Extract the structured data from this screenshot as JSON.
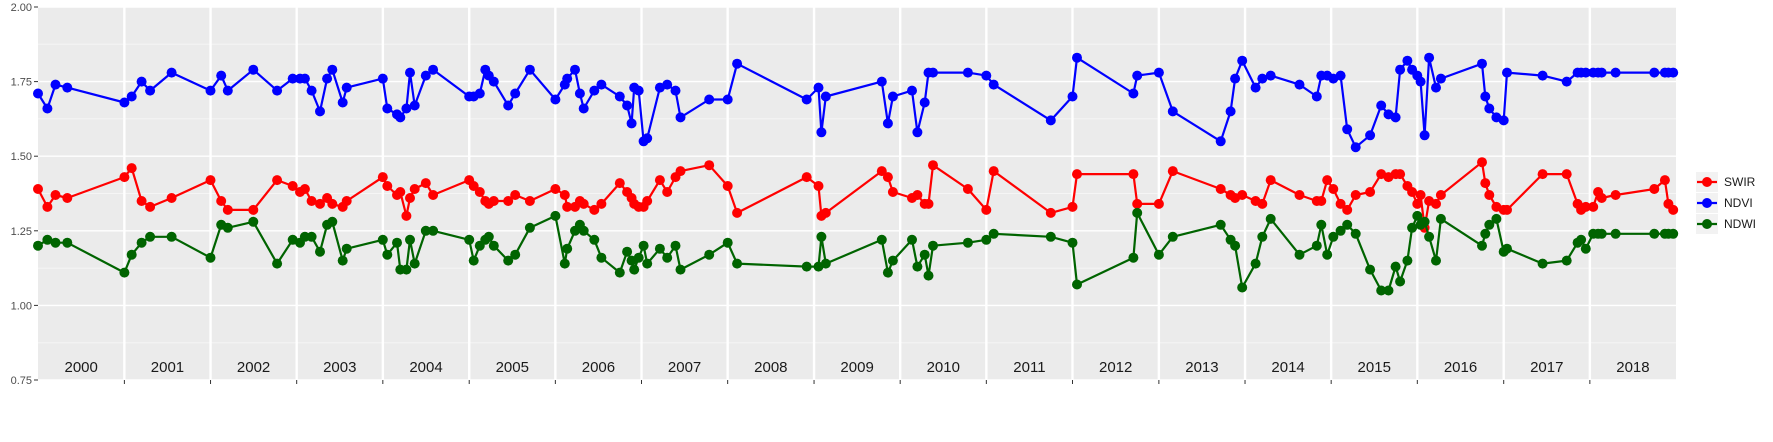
{
  "chart_data": {
    "type": "line",
    "title": "",
    "xlabel": "",
    "ylabel": "",
    "ylim": [
      0.75,
      2.0
    ],
    "xlim": [
      "2000-01-01",
      "2019-01-01"
    ],
    "y_ticks": [
      "0.75",
      "1.00",
      "1.25",
      "1.50",
      "1.75",
      "2.00"
    ],
    "y_tick_values": [
      0.75,
      1.0,
      1.25,
      1.5,
      1.75,
      2.0
    ],
    "year_labels": [
      "2000",
      "2001",
      "2002",
      "2003",
      "2004",
      "2005",
      "2006",
      "2007",
      "2008",
      "2009",
      "2010",
      "2011",
      "2012",
      "2013",
      "2014",
      "2015",
      "2016",
      "2017",
      "2018"
    ],
    "grid": true,
    "legend_position": "right",
    "dates": [
      "2000-01-01",
      "2000-02-10",
      "2000-03-15",
      "2000-05-04",
      "2001-01-01",
      "2001-02-01",
      "2001-03-15",
      "2001-04-20",
      "2001-07-20",
      "2002-01-01",
      "2002-02-15",
      "2002-03-15",
      "2002-07-01",
      "2002-10-10",
      "2002-12-15",
      "2003-01-15",
      "2003-02-05",
      "2003-03-05",
      "2003-04-10",
      "2003-05-10",
      "2003-06-01",
      "2003-07-15",
      "2003-08-01",
      "2004-01-01",
      "2004-01-20",
      "2004-03-01",
      "2004-03-15",
      "2004-04-10",
      "2004-04-25",
      "2004-05-15",
      "2004-07-01",
      "2004-08-01",
      "2005-01-01",
      "2005-01-20",
      "2005-02-15",
      "2005-03-10",
      "2005-03-25",
      "2005-04-15",
      "2005-06-15",
      "2005-07-15",
      "2005-09-15",
      "2006-01-01",
      "2006-02-10",
      "2006-02-20",
      "2006-03-25",
      "2006-04-15",
      "2006-05-01",
      "2006-06-15",
      "2006-07-15",
      "2006-10-01",
      "2006-11-01",
      "2006-11-20",
      "2006-12-01",
      "2006-12-20",
      "2007-01-10",
      "2007-01-25",
      "2007-03-20",
      "2007-04-20",
      "2007-05-25",
      "2007-06-15",
      "2007-10-15",
      "2008-01-01",
      "2008-02-10",
      "2008-12-01",
      "2009-01-20",
      "2009-02-01",
      "2009-02-20",
      "2009-10-15",
      "2009-11-10",
      "2009-12-01",
      "2010-02-20",
      "2010-03-15",
      "2010-04-15",
      "2010-05-01",
      "2010-05-20",
      "2010-10-15",
      "2011-01-01",
      "2011-02-01",
      "2011-10-01",
      "2012-01-01",
      "2012-01-20",
      "2012-09-15",
      "2012-10-01",
      "2013-01-01",
      "2013-03-01",
      "2013-09-20",
      "2013-11-01",
      "2013-11-20",
      "2013-12-20",
      "2014-02-15",
      "2014-03-15",
      "2014-04-20",
      "2014-08-20",
      "2014-11-01",
      "2014-11-20",
      "2014-12-15",
      "2015-01-10",
      "2015-02-10",
      "2015-03-10",
      "2015-04-15",
      "2015-06-15",
      "2015-08-01",
      "2015-09-01",
      "2015-10-01",
      "2015-10-20",
      "2015-11-20",
      "2015-12-10",
      "2016-01-01",
      "2016-01-15",
      "2016-02-01",
      "2016-02-20",
      "2016-03-20",
      "2016-04-10",
      "2016-10-01",
      "2016-10-15",
      "2016-11-01",
      "2016-12-01",
      "2017-01-01",
      "2017-01-15",
      "2017-06-15",
      "2017-09-25",
      "2017-11-10",
      "2017-11-25",
      "2017-12-15",
      "2018-01-15",
      "2018-02-05",
      "2018-02-20",
      "2018-04-20",
      "2018-10-01",
      "2018-11-15",
      "2018-11-30",
      "2018-12-20"
    ],
    "series": [
      {
        "name": "SWIR",
        "color": "#ff0000",
        "values": [
          1.39,
          1.33,
          1.37,
          1.36,
          1.43,
          1.46,
          1.35,
          1.33,
          1.36,
          1.42,
          1.35,
          1.32,
          1.32,
          1.42,
          1.4,
          1.38,
          1.39,
          1.35,
          1.34,
          1.36,
          1.34,
          1.33,
          1.35,
          1.43,
          1.4,
          1.37,
          1.38,
          1.3,
          1.36,
          1.39,
          1.41,
          1.37,
          1.42,
          1.4,
          1.38,
          1.35,
          1.34,
          1.35,
          1.35,
          1.37,
          1.35,
          1.39,
          1.37,
          1.33,
          1.33,
          1.35,
          1.34,
          1.32,
          1.34,
          1.41,
          1.38,
          1.36,
          1.34,
          1.33,
          1.33,
          1.35,
          1.42,
          1.38,
          1.43,
          1.45,
          1.47,
          1.4,
          1.31,
          1.43,
          1.4,
          1.3,
          1.31,
          1.45,
          1.43,
          1.38,
          1.36,
          1.37,
          1.34,
          1.34,
          1.47,
          1.39,
          1.32,
          1.45,
          1.31,
          1.33,
          1.44,
          1.44,
          1.34,
          1.34,
          1.45,
          1.39,
          1.37,
          1.36,
          1.37,
          1.35,
          1.34,
          1.42,
          1.37,
          1.35,
          1.35,
          1.42,
          1.39,
          1.34,
          1.32,
          1.37,
          1.38,
          1.44,
          1.43,
          1.44,
          1.44,
          1.4,
          1.38,
          1.34,
          1.37,
          1.26,
          1.35,
          1.34,
          1.37,
          1.48,
          1.41,
          1.37,
          1.33,
          1.32,
          1.32,
          1.44,
          1.44,
          1.34,
          1.32,
          1.33,
          1.33,
          1.38,
          1.36,
          1.37,
          1.39,
          1.42,
          1.34,
          1.32
        ]
      },
      {
        "name": "NDVI",
        "color": "#0000ff",
        "values": [
          1.71,
          1.66,
          1.74,
          1.73,
          1.68,
          1.7,
          1.75,
          1.72,
          1.78,
          1.72,
          1.77,
          1.72,
          1.79,
          1.72,
          1.76,
          1.76,
          1.76,
          1.72,
          1.65,
          1.76,
          1.79,
          1.68,
          1.73,
          1.76,
          1.66,
          1.64,
          1.63,
          1.66,
          1.78,
          1.67,
          1.77,
          1.79,
          1.7,
          1.7,
          1.71,
          1.79,
          1.77,
          1.75,
          1.67,
          1.71,
          1.79,
          1.69,
          1.74,
          1.76,
          1.79,
          1.71,
          1.66,
          1.72,
          1.74,
          1.7,
          1.67,
          1.61,
          1.73,
          1.72,
          1.55,
          1.56,
          1.73,
          1.74,
          1.72,
          1.63,
          1.69,
          1.69,
          1.81,
          1.69,
          1.73,
          1.58,
          1.7,
          1.75,
          1.61,
          1.7,
          1.72,
          1.58,
          1.68,
          1.78,
          1.78,
          1.78,
          1.77,
          1.74,
          1.62,
          1.7,
          1.83,
          1.71,
          1.77,
          1.78,
          1.65,
          1.55,
          1.65,
          1.76,
          1.82,
          1.73,
          1.76,
          1.77,
          1.74,
          1.7,
          1.77,
          1.77,
          1.76,
          1.77,
          1.59,
          1.53,
          1.57,
          1.67,
          1.64,
          1.63,
          1.79,
          1.82,
          1.79,
          1.77,
          1.75,
          1.57,
          1.83,
          1.73,
          1.76,
          1.81,
          1.7,
          1.66,
          1.63,
          1.62,
          1.78,
          1.77,
          1.75,
          1.78,
          1.78,
          1.78,
          1.78,
          1.78,
          1.78,
          1.78,
          1.78,
          1.78,
          1.78,
          1.78
        ]
      },
      {
        "name": "NDWI",
        "color": "#006400",
        "values": [
          1.2,
          1.22,
          1.21,
          1.21,
          1.11,
          1.17,
          1.21,
          1.23,
          1.23,
          1.16,
          1.27,
          1.26,
          1.28,
          1.14,
          1.22,
          1.21,
          1.23,
          1.23,
          1.18,
          1.27,
          1.28,
          1.15,
          1.19,
          1.22,
          1.17,
          1.21,
          1.12,
          1.12,
          1.22,
          1.14,
          1.25,
          1.25,
          1.22,
          1.15,
          1.2,
          1.22,
          1.23,
          1.2,
          1.15,
          1.17,
          1.26,
          1.3,
          1.14,
          1.19,
          1.25,
          1.27,
          1.25,
          1.22,
          1.16,
          1.11,
          1.18,
          1.15,
          1.12,
          1.16,
          1.2,
          1.14,
          1.19,
          1.16,
          1.2,
          1.12,
          1.17,
          1.21,
          1.14,
          1.13,
          1.13,
          1.23,
          1.14,
          1.22,
          1.11,
          1.15,
          1.22,
          1.13,
          1.17,
          1.1,
          1.2,
          1.21,
          1.22,
          1.24,
          1.23,
          1.21,
          1.07,
          1.16,
          1.31,
          1.17,
          1.23,
          1.27,
          1.22,
          1.2,
          1.06,
          1.14,
          1.23,
          1.29,
          1.17,
          1.2,
          1.27,
          1.17,
          1.23,
          1.25,
          1.27,
          1.24,
          1.12,
          1.05,
          1.05,
          1.13,
          1.08,
          1.15,
          1.26,
          1.3,
          1.27,
          1.28,
          1.23,
          1.15,
          1.29,
          1.2,
          1.24,
          1.27,
          1.29,
          1.18,
          1.19,
          1.14,
          1.15,
          1.21,
          1.22,
          1.19,
          1.24,
          1.24,
          1.24,
          1.24,
          1.24,
          1.24,
          1.24,
          1.24
        ]
      }
    ]
  }
}
